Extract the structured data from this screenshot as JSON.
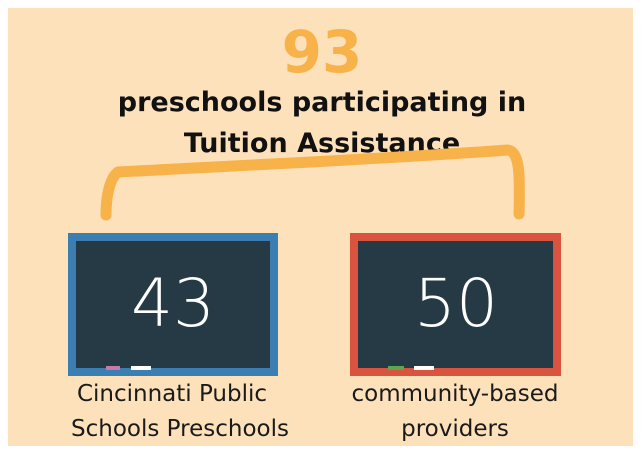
{
  "headline": {
    "number": 93,
    "lines": [
      "preschools participating in",
      "Tuition Assistance"
    ]
  },
  "boards": [
    {
      "value": 43,
      "label": [
        "Cincinnati Public",
        "Schools Preschools"
      ]
    },
    {
      "value": 50,
      "label": [
        "community-based",
        "providers"
      ]
    }
  ]
}
